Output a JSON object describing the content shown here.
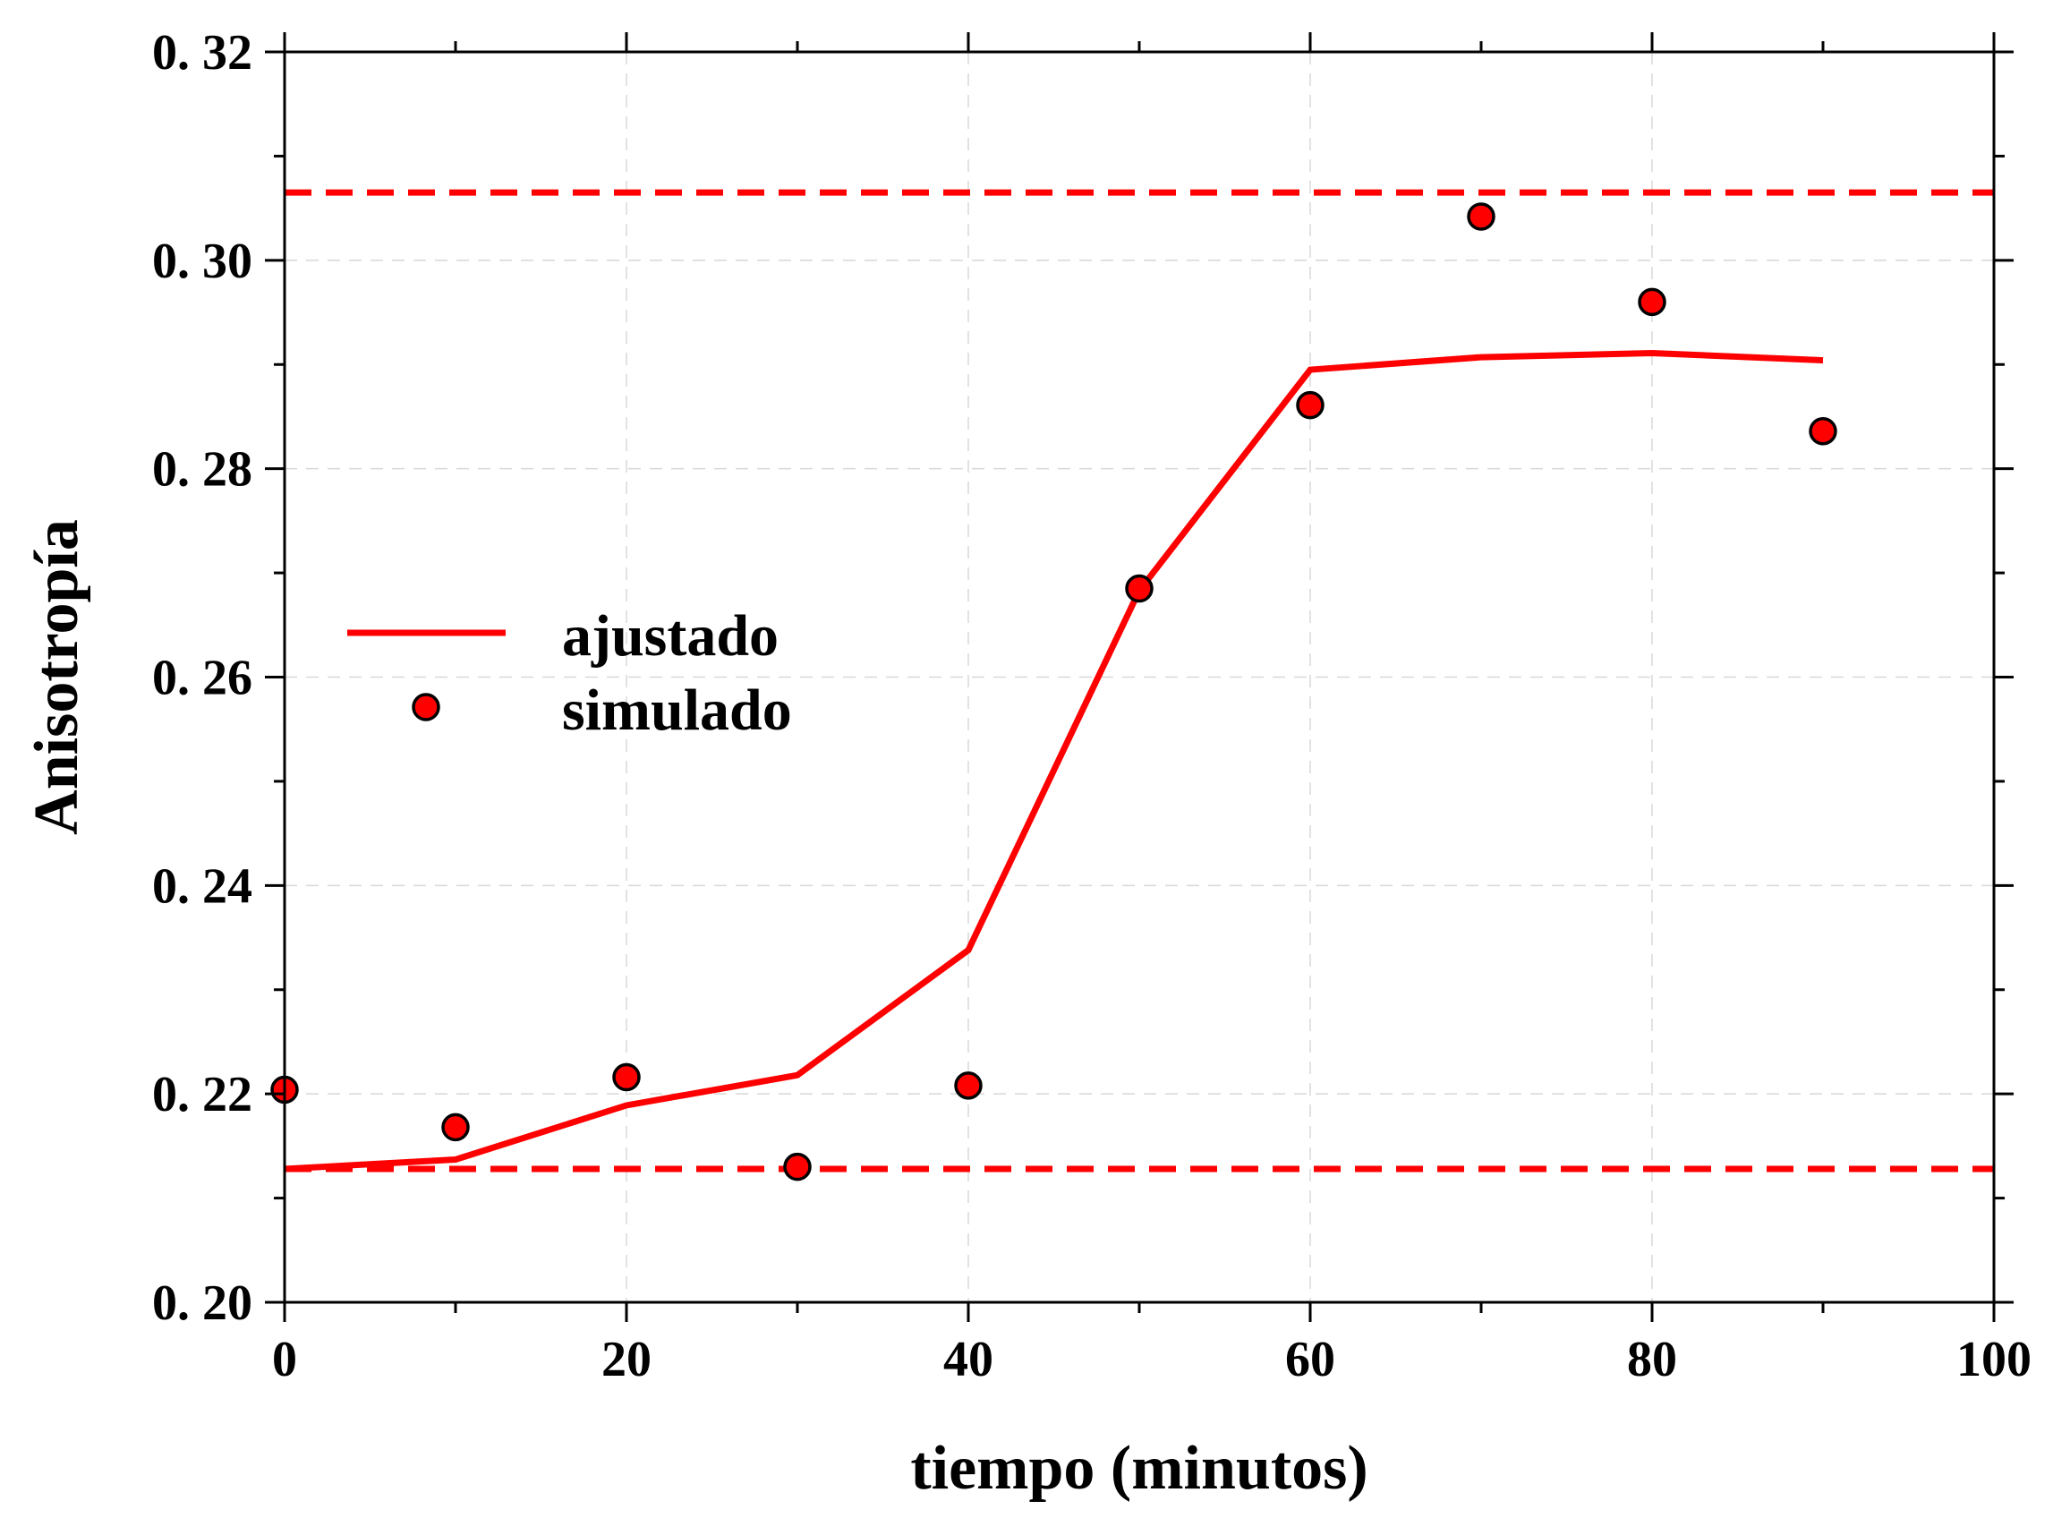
{
  "chart_data": {
    "type": "line",
    "xlabel": "tiempo (minutos)",
    "ylabel": "Anisotropía",
    "xlim": [
      0,
      100
    ],
    "ylim": [
      0.2,
      0.32
    ],
    "xticks": [
      0,
      20,
      40,
      60,
      80,
      100
    ],
    "xtick_labels": [
      "0",
      "20",
      "40",
      "60",
      "80",
      "100"
    ],
    "yticks": [
      0.2,
      0.22,
      0.24,
      0.26,
      0.28,
      0.3,
      0.32
    ],
    "ytick_labels": [
      "0. 20",
      "0. 22",
      "0. 24",
      "0. 26",
      "0. 28",
      "0. 30",
      "0. 32"
    ],
    "grid": true,
    "legend_position": "center-left",
    "series": [
      {
        "name": "ajustado",
        "style": "line",
        "color": "#ff0000",
        "x": [
          0,
          10,
          20,
          30,
          40,
          50,
          60,
          70,
          80,
          90
        ],
        "y": [
          0.2128,
          0.2137,
          0.2189,
          0.2218,
          0.2338,
          0.2683,
          0.2895,
          0.2907,
          0.2911,
          0.2904
        ]
      },
      {
        "name": "simulado",
        "style": "scatter",
        "color": "#ff0000",
        "x": [
          0,
          10,
          20,
          30,
          40,
          50,
          60,
          70,
          80,
          90
        ],
        "y": [
          0.2204,
          0.2168,
          0.2216,
          0.213,
          0.2208,
          0.2685,
          0.2861,
          0.3042,
          0.296,
          0.2836
        ]
      }
    ],
    "reference_lines": [
      {
        "y": 0.3065,
        "style": "dashed",
        "color": "#ff0000"
      },
      {
        "y": 0.2128,
        "style": "dashed",
        "color": "#ff0000"
      }
    ]
  }
}
